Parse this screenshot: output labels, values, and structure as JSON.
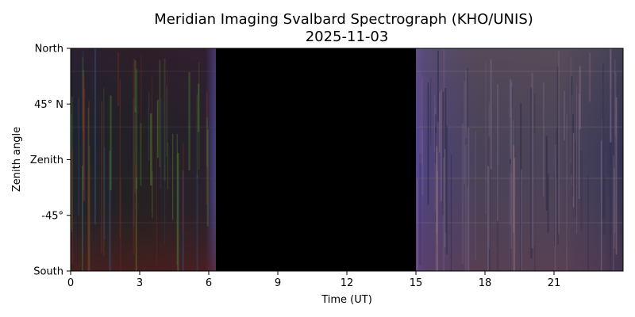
{
  "chart_data": {
    "type": "heatmap",
    "title": "Meridian Imaging Svalbard Spectrograph (KHO/UNIS)",
    "subtitle": "2025-11-03",
    "xlabel": "Time (UT)",
    "ylabel": "Zenith angle",
    "xlim": [
      0,
      24
    ],
    "x_ticks": [
      0,
      3,
      6,
      9,
      12,
      15,
      18,
      21
    ],
    "x_tick_labels": [
      "0",
      "3",
      "6",
      "9",
      "12",
      "15",
      "18",
      "21"
    ],
    "y_ticks": [
      90,
      45,
      0,
      -45,
      -90
    ],
    "y_tick_labels": [
      "North",
      "45° N",
      "Zenith",
      "-45°",
      "South"
    ],
    "ylim": [
      -90,
      90
    ],
    "grid": false,
    "segments": [
      {
        "x_start": 0,
        "x_end": 6.3,
        "content": "keogram"
      },
      {
        "x_start": 6.3,
        "x_end": 15.0,
        "content": "no-data"
      },
      {
        "x_start": 15.0,
        "x_end": 24,
        "content": "keogram"
      }
    ]
  }
}
